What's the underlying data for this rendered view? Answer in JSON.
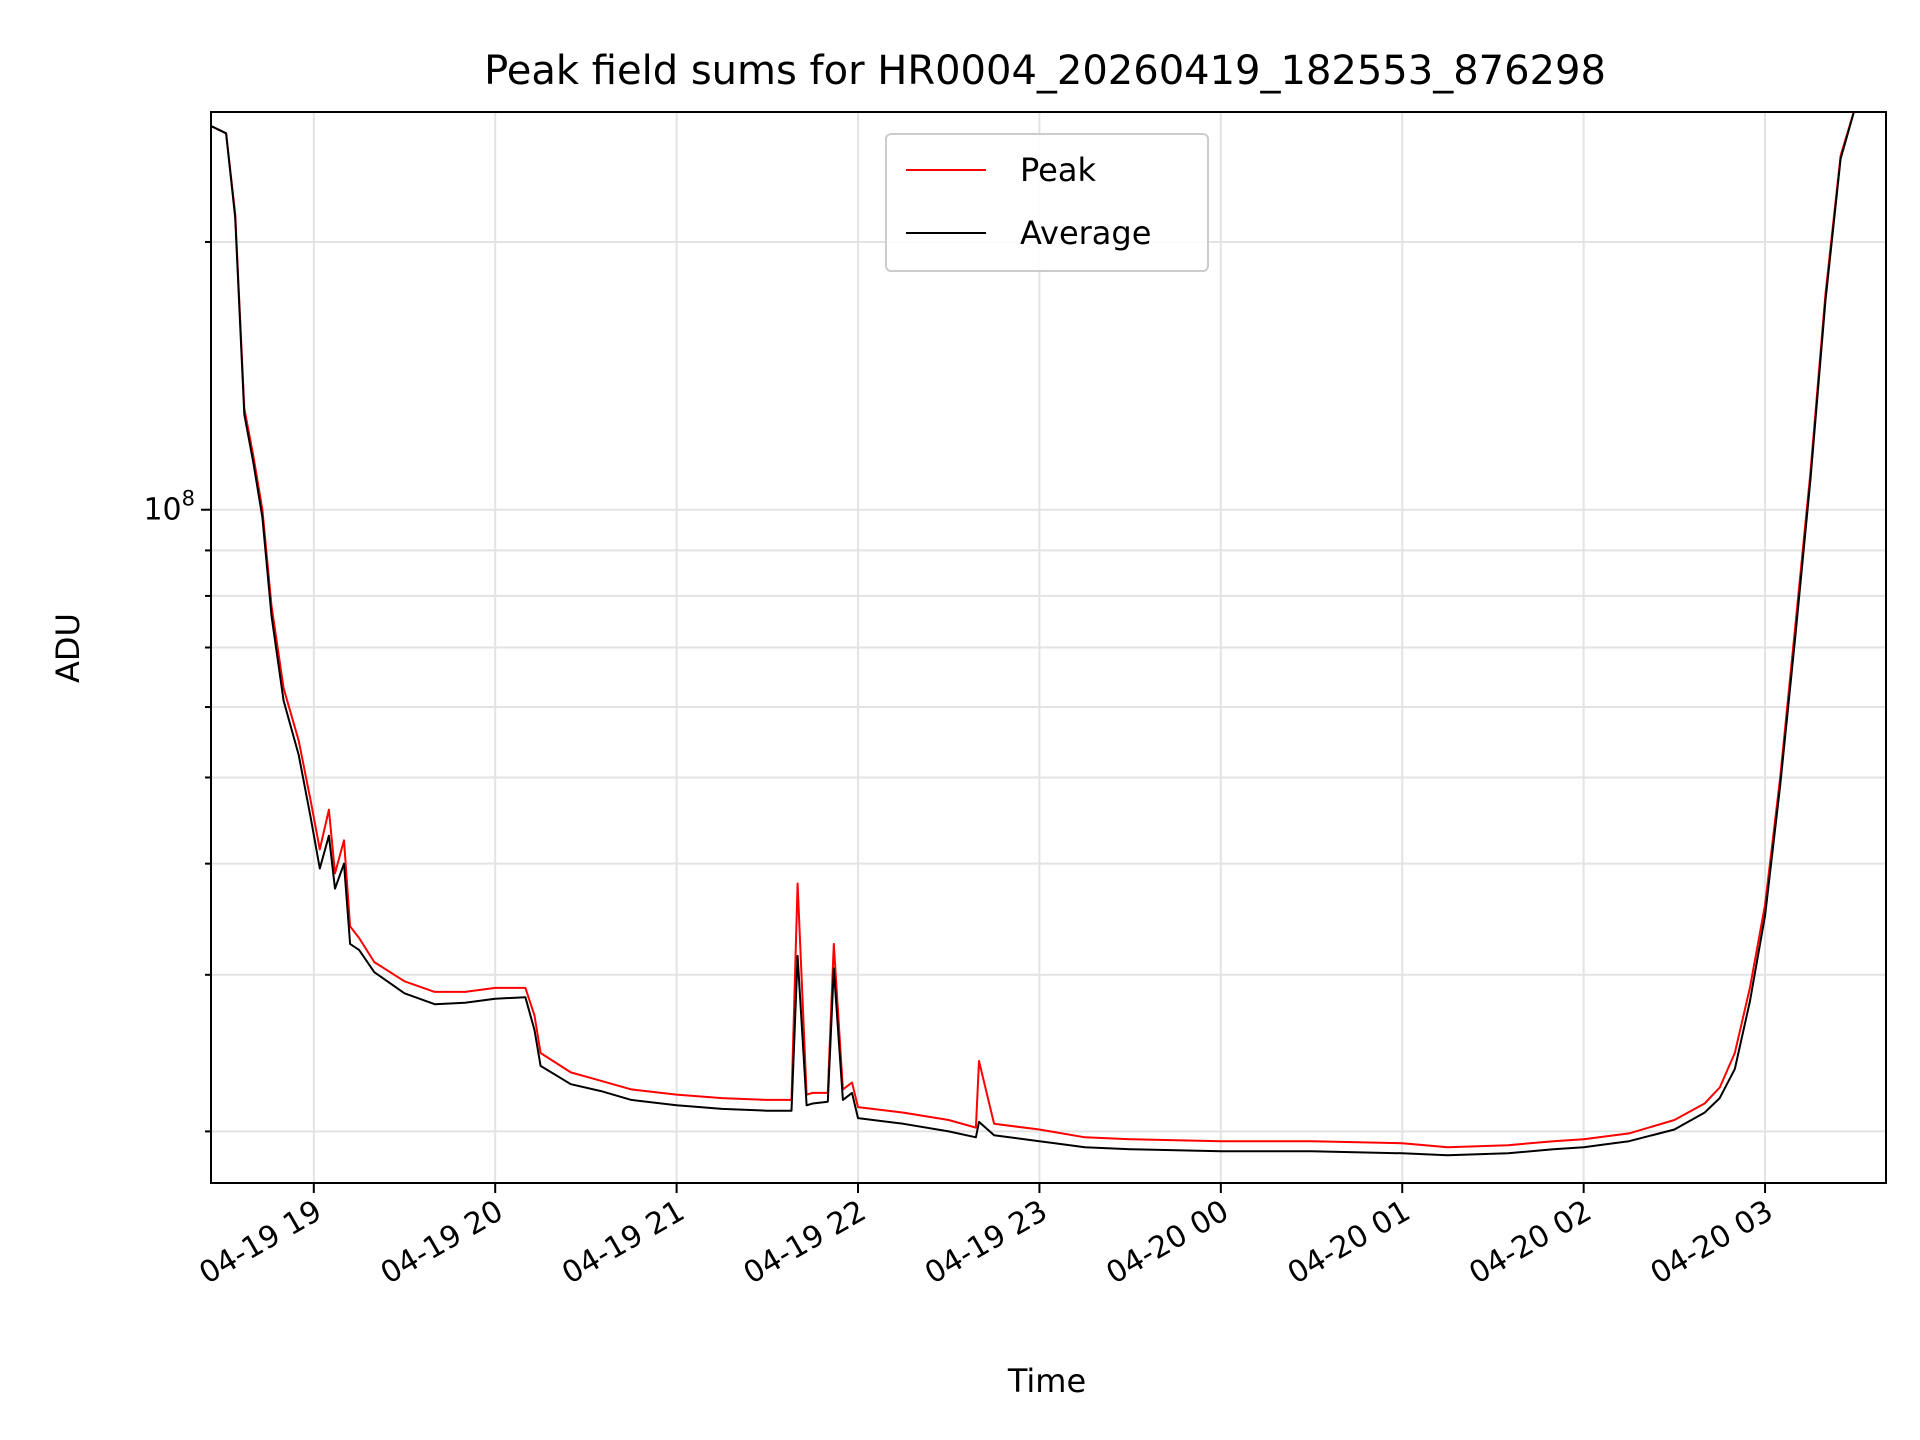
{
  "chart_data": {
    "type": "line",
    "title": "Peak field sums for HR0004_20260419_182553_876298",
    "xlabel": "Time",
    "ylabel": "ADU",
    "y_scale": "log",
    "ylim": [
      17500000,
      280000000
    ],
    "xlim": [
      "2026-04-19 18:26",
      "2026-04-20 03:40"
    ],
    "grid": true,
    "legend_position": "top-center",
    "x_ticks": [
      {
        "value": "2026-04-19 19:00",
        "label": "04-19 19"
      },
      {
        "value": "2026-04-19 20:00",
        "label": "04-19 20"
      },
      {
        "value": "2026-04-19 21:00",
        "label": "04-19 21"
      },
      {
        "value": "2026-04-19 22:00",
        "label": "04-19 22"
      },
      {
        "value": "2026-04-19 23:00",
        "label": "04-19 23"
      },
      {
        "value": "2026-04-20 00:00",
        "label": "04-20 00"
      },
      {
        "value": "2026-04-20 01:00",
        "label": "04-20 01"
      },
      {
        "value": "2026-04-20 02:00",
        "label": "04-20 02"
      },
      {
        "value": "2026-04-20 03:00",
        "label": "04-20 03"
      }
    ],
    "y_ticks": [
      {
        "value": 100000000,
        "label_base": "10",
        "label_exp": "8"
      }
    ],
    "series": [
      {
        "name": "Peak",
        "color": "#ff0000",
        "x": [
          "2026-04-19 18:26",
          "2026-04-19 18:31",
          "2026-04-19 18:34",
          "2026-04-19 18:37",
          "2026-04-19 18:40",
          "2026-04-19 18:43",
          "2026-04-19 18:46",
          "2026-04-19 18:50",
          "2026-04-19 18:55",
          "2026-04-19 18:59",
          "2026-04-19 19:02",
          "2026-04-19 19:05",
          "2026-04-19 19:07",
          "2026-04-19 19:10",
          "2026-04-19 19:12",
          "2026-04-19 19:15",
          "2026-04-19 19:20",
          "2026-04-19 19:30",
          "2026-04-19 19:40",
          "2026-04-19 19:50",
          "2026-04-19 20:00",
          "2026-04-19 20:10",
          "2026-04-19 20:13",
          "2026-04-19 20:15",
          "2026-04-19 20:25",
          "2026-04-19 20:35",
          "2026-04-19 20:45",
          "2026-04-19 21:00",
          "2026-04-19 21:15",
          "2026-04-19 21:30",
          "2026-04-19 21:38",
          "2026-04-19 21:40",
          "2026-04-19 21:43",
          "2026-04-19 21:45",
          "2026-04-19 21:50",
          "2026-04-19 21:52",
          "2026-04-19 21:55",
          "2026-04-19 21:58",
          "2026-04-19 22:00",
          "2026-04-19 22:15",
          "2026-04-19 22:30",
          "2026-04-19 22:39",
          "2026-04-19 22:40",
          "2026-04-19 22:45",
          "2026-04-19 23:00",
          "2026-04-19 23:15",
          "2026-04-19 23:30",
          "2026-04-20 00:00",
          "2026-04-20 00:30",
          "2026-04-20 01:00",
          "2026-04-20 01:15",
          "2026-04-20 01:35",
          "2026-04-20 01:50",
          "2026-04-20 02:00",
          "2026-04-20 02:15",
          "2026-04-20 02:30",
          "2026-04-20 02:40",
          "2026-04-20 02:45",
          "2026-04-20 02:50",
          "2026-04-20 02:55",
          "2026-04-20 03:00",
          "2026-04-20 03:05",
          "2026-04-20 03:10",
          "2026-04-20 03:15",
          "2026-04-20 03:20",
          "2026-04-20 03:25",
          "2026-04-20 03:30"
        ],
        "y": [
          270000000,
          265000000,
          215000000,
          130000000,
          115000000,
          100000000,
          78000000,
          63000000,
          55000000,
          47000000,
          41500000,
          46000000,
          39000000,
          42500000,
          34000000,
          33000000,
          31000000,
          29500000,
          28700000,
          28700000,
          29000000,
          29000000,
          27000000,
          24500000,
          23300000,
          22800000,
          22300000,
          22000000,
          21800000,
          21700000,
          21700000,
          38000000,
          22000000,
          22100000,
          22100000,
          32500000,
          22300000,
          22700000,
          21300000,
          21000000,
          20600000,
          20200000,
          24000000,
          20400000,
          20100000,
          19700000,
          19600000,
          19500000,
          19500000,
          19400000,
          19200000,
          19300000,
          19500000,
          19600000,
          19900000,
          20600000,
          21500000,
          22400000,
          24500000,
          29000000,
          36000000,
          50000000,
          74000000,
          110000000,
          175000000,
          250000000,
          285000000
        ]
      },
      {
        "name": "Average",
        "color": "#000000",
        "x": [
          "2026-04-19 18:26",
          "2026-04-19 18:31",
          "2026-04-19 18:34",
          "2026-04-19 18:37",
          "2026-04-19 18:40",
          "2026-04-19 18:43",
          "2026-04-19 18:46",
          "2026-04-19 18:50",
          "2026-04-19 18:55",
          "2026-04-19 18:59",
          "2026-04-19 19:02",
          "2026-04-19 19:05",
          "2026-04-19 19:07",
          "2026-04-19 19:10",
          "2026-04-19 19:12",
          "2026-04-19 19:15",
          "2026-04-19 19:20",
          "2026-04-19 19:30",
          "2026-04-19 19:40",
          "2026-04-19 19:50",
          "2026-04-19 20:00",
          "2026-04-19 20:10",
          "2026-04-19 20:13",
          "2026-04-19 20:15",
          "2026-04-19 20:25",
          "2026-04-19 20:35",
          "2026-04-19 20:45",
          "2026-04-19 21:00",
          "2026-04-19 21:15",
          "2026-04-19 21:30",
          "2026-04-19 21:38",
          "2026-04-19 21:40",
          "2026-04-19 21:43",
          "2026-04-19 21:45",
          "2026-04-19 21:50",
          "2026-04-19 21:52",
          "2026-04-19 21:55",
          "2026-04-19 21:58",
          "2026-04-19 22:00",
          "2026-04-19 22:15",
          "2026-04-19 22:30",
          "2026-04-19 22:39",
          "2026-04-19 22:40",
          "2026-04-19 22:45",
          "2026-04-19 23:00",
          "2026-04-19 23:15",
          "2026-04-19 23:30",
          "2026-04-20 00:00",
          "2026-04-20 00:30",
          "2026-04-20 01:00",
          "2026-04-20 01:15",
          "2026-04-20 01:35",
          "2026-04-20 01:50",
          "2026-04-20 02:00",
          "2026-04-20 02:15",
          "2026-04-20 02:30",
          "2026-04-20 02:40",
          "2026-04-20 02:45",
          "2026-04-20 02:50",
          "2026-04-20 02:55",
          "2026-04-20 03:00",
          "2026-04-20 03:05",
          "2026-04-20 03:10",
          "2026-04-20 03:15",
          "2026-04-20 03:20",
          "2026-04-20 03:25",
          "2026-04-20 03:30"
        ],
        "y": [
          270000000,
          265000000,
          213000000,
          128000000,
          113000000,
          98000000,
          76000000,
          61000000,
          53000000,
          45000000,
          39500000,
          43000000,
          37500000,
          40000000,
          32500000,
          32000000,
          30200000,
          28600000,
          27800000,
          27900000,
          28200000,
          28300000,
          26000000,
          23700000,
          22600000,
          22200000,
          21700000,
          21400000,
          21200000,
          21100000,
          21100000,
          31500000,
          21400000,
          21500000,
          21600000,
          30500000,
          21700000,
          22100000,
          20700000,
          20400000,
          20000000,
          19700000,
          20500000,
          19800000,
          19500000,
          19200000,
          19100000,
          19000000,
          19000000,
          18900000,
          18800000,
          18900000,
          19100000,
          19200000,
          19500000,
          20100000,
          21000000,
          21800000,
          23500000,
          28000000,
          35000000,
          49000000,
          72000000,
          108000000,
          172000000,
          248000000,
          285000000
        ]
      }
    ]
  }
}
